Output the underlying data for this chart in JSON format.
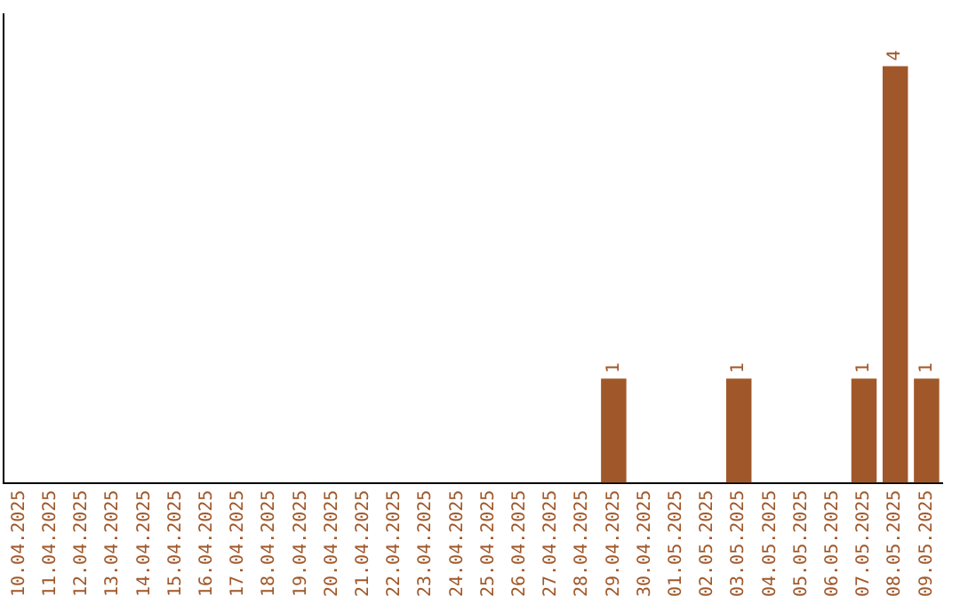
{
  "chart_data": {
    "type": "bar",
    "categories": [
      "10.04.2025",
      "11.04.2025",
      "12.04.2025",
      "13.04.2025",
      "14.04.2025",
      "15.04.2025",
      "16.04.2025",
      "17.04.2025",
      "18.04.2025",
      "19.04.2025",
      "20.04.2025",
      "21.04.2025",
      "22.04.2025",
      "23.04.2025",
      "24.04.2025",
      "25.04.2025",
      "26.04.2025",
      "27.04.2025",
      "28.04.2025",
      "29.04.2025",
      "30.04.2025",
      "01.05.2025",
      "02.05.2025",
      "03.05.2025",
      "04.05.2025",
      "05.05.2025",
      "06.05.2025",
      "07.05.2025",
      "08.05.2025",
      "09.05.2025"
    ],
    "values": [
      null,
      null,
      null,
      null,
      null,
      null,
      null,
      null,
      null,
      null,
      null,
      null,
      null,
      null,
      null,
      null,
      null,
      null,
      null,
      1,
      null,
      null,
      null,
      1,
      null,
      null,
      null,
      1,
      4,
      1
    ],
    "color": "#a0582a",
    "data_labels": true,
    "tick_labels": "x",
    "grid": false,
    "legend": false
  }
}
